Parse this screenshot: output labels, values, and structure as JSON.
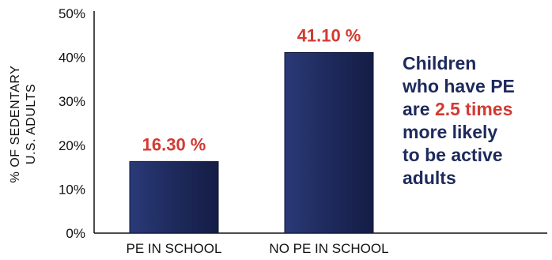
{
  "chart_data": {
    "type": "bar",
    "categories": [
      "PE IN SCHOOL",
      "NO PE IN SCHOOL"
    ],
    "values": [
      16.3,
      41.1
    ],
    "data_labels": [
      "16.30 %",
      "41.10 %"
    ],
    "ylabel_lines": [
      "% OF SEDENTARY",
      "U.S. ADULTS"
    ],
    "yticks": [
      "0%",
      "10%",
      "20%",
      "30%",
      "40%",
      "50%"
    ],
    "ylim": [
      0,
      50
    ],
    "grid": false,
    "bar_color": "#1e2a5c",
    "label_color": "#d23a32"
  },
  "annotation": {
    "line1": "Children",
    "line2": "who have PE",
    "line3_pre": "are ",
    "line3_highlight": "2.5 times",
    "line4": "more likely",
    "line5": "to be active",
    "line6": "adults"
  },
  "colors": {
    "text": "#1e2a5c",
    "highlight": "#d23a32",
    "axis": "#111111"
  }
}
